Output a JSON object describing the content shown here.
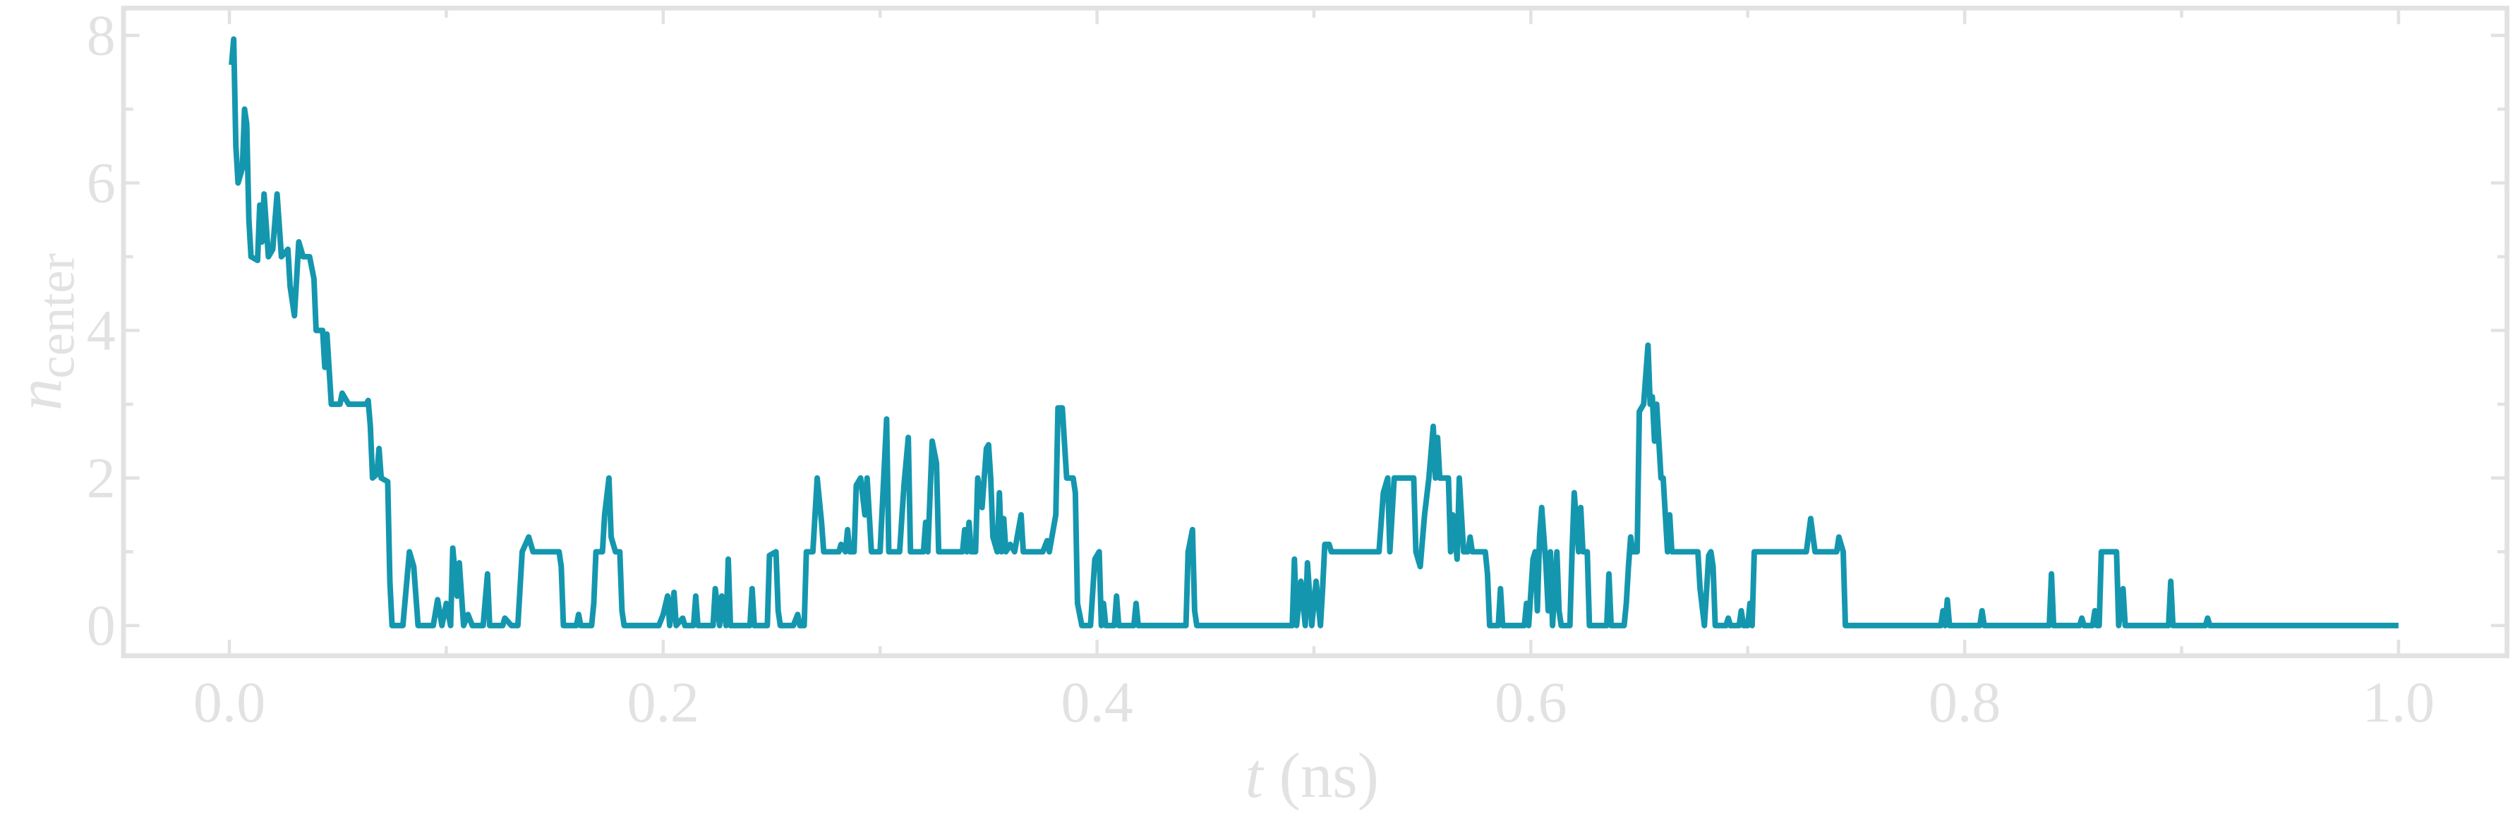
{
  "chart_data": {
    "type": "line",
    "xlabel": {
      "symbol": "t",
      "unit": "(ns)"
    },
    "ylabel": {
      "symbol": "n",
      "subscript": "center"
    },
    "xlim": [
      -0.0488,
      1.05
    ],
    "ylim": [
      -0.41,
      8.37
    ],
    "xticks": [
      {
        "value": 0,
        "label": "0.0"
      },
      {
        "value": 0.2,
        "label": "0.2"
      },
      {
        "value": 0.4,
        "label": "0.4"
      },
      {
        "value": 0.6,
        "label": "0.6"
      },
      {
        "value": 0.8,
        "label": "0.8"
      },
      {
        "value": 1,
        "label": "1.0"
      }
    ],
    "xminorticks": [
      0.1,
      0.3,
      0.5,
      0.7,
      0.9
    ],
    "yticks": [
      0,
      2,
      4,
      6,
      8
    ],
    "yminorticks": [
      1,
      3,
      5,
      7
    ],
    "axis_color": "#e2e2e2",
    "x": [
      0.001,
      0.002,
      0.003,
      0.004,
      0.006,
      0.007,
      0.008,
      0.009,
      0.01,
      0.013,
      0.014,
      0.015,
      0.016,
      0.018,
      0.02,
      0.022,
      0.024,
      0.027,
      0.028,
      0.03,
      0.032,
      0.034,
      0.037,
      0.039,
      0.04,
      0.043,
      0.044,
      0.045,
      0.047,
      0.051,
      0.052,
      0.055,
      0.063,
      0.064,
      0.065,
      0.066,
      0.068,
      0.069,
      0.07,
      0.073,
      0.074,
      0.075,
      0.08,
      0.083,
      0.085,
      0.087,
      0.094,
      0.096,
      0.098,
      0.1,
      0.102,
      0.103,
      0.105,
      0.106,
      0.108,
      0.11,
      0.112,
      0.117,
      0.119,
      0.12,
      0.126,
      0.127,
      0.13,
      0.133,
      0.135,
      0.138,
      0.14,
      0.152,
      0.153,
      0.154,
      0.16,
      0.161,
      0.162,
      0.167,
      0.168,
      0.169,
      0.172,
      0.173,
      0.175,
      0.176,
      0.178,
      0.18,
      0.181,
      0.182,
      0.198,
      0.2,
      0.202,
      0.203,
      0.205,
      0.206,
      0.209,
      0.21,
      0.214,
      0.215,
      0.216,
      0.223,
      0.224,
      0.226,
      0.227,
      0.229,
      0.23,
      0.231,
      0.24,
      0.241,
      0.242,
      0.248,
      0.249,
      0.252,
      0.253,
      0.254,
      0.26,
      0.262,
      0.263,
      0.265,
      0.266,
      0.269,
      0.271,
      0.273,
      0.274,
      0.281,
      0.282,
      0.284,
      0.285,
      0.286,
      0.288,
      0.289,
      0.291,
      0.293,
      0.294,
      0.296,
      0.3,
      0.301,
      0.303,
      0.304,
      0.309,
      0.311,
      0.313,
      0.314,
      0.32,
      0.321,
      0.322,
      0.324,
      0.326,
      0.327,
      0.338,
      0.339,
      0.34,
      0.341,
      0.342,
      0.344,
      0.345,
      0.347,
      0.349,
      0.35,
      0.351,
      0.352,
      0.354,
      0.355,
      0.356,
      0.357,
      0.358,
      0.36,
      0.362,
      0.365,
      0.366,
      0.375,
      0.377,
      0.378,
      0.381,
      0.382,
      0.384,
      0.386,
      0.389,
      0.39,
      0.391,
      0.393,
      0.397,
      0.399,
      0.401,
      0.402,
      0.403,
      0.404,
      0.408,
      0.409,
      0.41,
      0.417,
      0.418,
      0.419,
      0.441,
      0.442,
      0.444,
      0.445,
      0.446,
      0.49,
      0.491,
      0.492,
      0.494,
      0.496,
      0.497,
      0.499,
      0.501,
      0.503,
      0.504,
      0.505,
      0.507,
      0.508,
      0.53,
      0.532,
      0.534,
      0.535,
      0.537,
      0.538,
      0.546,
      0.547,
      0.549,
      0.551,
      0.553,
      0.555,
      0.556,
      0.557,
      0.558,
      0.562,
      0.563,
      0.564,
      0.565,
      0.566,
      0.567,
      0.568,
      0.569,
      0.571,
      0.572,
      0.573,
      0.579,
      0.58,
      0.581,
      0.585,
      0.586,
      0.587,
      0.597,
      0.598,
      0.599,
      0.601,
      0.602,
      0.603,
      0.604,
      0.605,
      0.607,
      0.608,
      0.609,
      0.61,
      0.612,
      0.613,
      0.614,
      0.618,
      0.619,
      0.62,
      0.622,
      0.623,
      0.624,
      0.626,
      0.627,
      0.635,
      0.636,
      0.637,
      0.643,
      0.644,
      0.645,
      0.646,
      0.647,
      0.649,
      0.65,
      0.652,
      0.654,
      0.655,
      0.656,
      0.657,
      0.658,
      0.66,
      0.661,
      0.662,
      0.663,
      0.664,
      0.665,
      0.677,
      0.678,
      0.68,
      0.682,
      0.683,
      0.684,
      0.685,
      0.69,
      0.691,
      0.692,
      0.696,
      0.697,
      0.698,
      0.7,
      0.701,
      0.702,
      0.703,
      0.727,
      0.729,
      0.731,
      0.741,
      0.742,
      0.744,
      0.745,
      0.789,
      0.79,
      0.791,
      0.792,
      0.793,
      0.807,
      0.808,
      0.809,
      0.839,
      0.84,
      0.841,
      0.853,
      0.854,
      0.855,
      0.859,
      0.86,
      0.861,
      0.862,
      0.863,
      0.87,
      0.871,
      0.873,
      0.874,
      0.894,
      0.895,
      0.896,
      0.911,
      0.912,
      0.913,
      1.0
    ],
    "series": [
      {
        "color": "#1497ae",
        "values": [
          7.6,
          7.95,
          6.5,
          6.0,
          6.2,
          7.0,
          6.8,
          5.5,
          5.0,
          4.95,
          5.7,
          5.2,
          5.85,
          5.0,
          5.1,
          5.85,
          5.0,
          5.1,
          4.6,
          4.2,
          5.2,
          5.0,
          5.0,
          4.7,
          4.0,
          4.0,
          3.5,
          3.95,
          3.0,
          3.0,
          3.15,
          3.0,
          3.0,
          3.05,
          2.7,
          2.0,
          2.05,
          2.4,
          2.0,
          1.95,
          0.6,
          0,
          0,
          1.0,
          0.8,
          0,
          0,
          0.35,
          0,
          0.3,
          0,
          1.05,
          0.4,
          0.85,
          0,
          0.15,
          0,
          0,
          0.7,
          0,
          0,
          0.1,
          0,
          0,
          1.0,
          1.2,
          1.0,
          1.0,
          0.8,
          0,
          0,
          0.15,
          0,
          0,
          0.3,
          1.0,
          1.0,
          1.5,
          2.0,
          1.2,
          1.0,
          1.0,
          0.2,
          0,
          0,
          0.15,
          0.4,
          0,
          0.45,
          0,
          0.1,
          0,
          0,
          0.4,
          0,
          0,
          0.5,
          0,
          0.4,
          0,
          0.9,
          0,
          0,
          0.5,
          0,
          0,
          0.95,
          1.0,
          0.2,
          0,
          0,
          0.15,
          0,
          0,
          1.0,
          1.0,
          2.0,
          1.4,
          1.0,
          1.0,
          1.1,
          1.0,
          1.3,
          1.0,
          1.0,
          1.9,
          2.0,
          1.5,
          2.0,
          1.0,
          1.0,
          1.6,
          2.8,
          1.0,
          1.0,
          1.9,
          2.55,
          1.0,
          1.0,
          1.4,
          1.0,
          2.5,
          2.2,
          1.0,
          1.0,
          1.3,
          1.0,
          1.4,
          1.0,
          1.0,
          2.0,
          1.6,
          2.4,
          2.45,
          2.0,
          1.2,
          1.0,
          1.8,
          1.0,
          1.45,
          1.0,
          1.1,
          1.0,
          1.5,
          1.0,
          1.0,
          1.15,
          1.0,
          1.5,
          2.95,
          2.95,
          2.0,
          2.0,
          1.8,
          0.3,
          0,
          0,
          0.9,
          1.0,
          0,
          0.3,
          0,
          0,
          0.4,
          0,
          0,
          0.3,
          0,
          0,
          1.0,
          1.3,
          0.2,
          0,
          0,
          0.9,
          0,
          0.6,
          0,
          0.85,
          0,
          0.6,
          0,
          0.5,
          1.1,
          1.1,
          1.0,
          1.0,
          1.8,
          2.0,
          1.0,
          2.0,
          2.0,
          2.0,
          1.0,
          0.8,
          1.5,
          2.0,
          2.7,
          2.0,
          2.55,
          2.0,
          2.0,
          1.0,
          1.5,
          1.2,
          0.9,
          2.0,
          1.5,
          1.0,
          1.0,
          1.2,
          1.0,
          1.0,
          0.7,
          0,
          0,
          0.5,
          0,
          0,
          0.3,
          0,
          0.9,
          1.0,
          0.2,
          1.2,
          1.6,
          0.8,
          0.2,
          1.0,
          0,
          1.0,
          0.2,
          0,
          0,
          1.0,
          1.8,
          1.0,
          1.6,
          1.0,
          1.0,
          0,
          0,
          0.7,
          0,
          0,
          0.3,
          0.8,
          1.2,
          1.0,
          1.0,
          2.9,
          3.0,
          3.8,
          3.0,
          3.1,
          2.5,
          3.0,
          2.0,
          2.0,
          1.5,
          1.0,
          1.5,
          1.0,
          1.0,
          0.5,
          0,
          0.95,
          1.0,
          0.8,
          0,
          0,
          0.1,
          0,
          0,
          0.2,
          0,
          0,
          0.3,
          0,
          1.0,
          1.0,
          1.45,
          1.0,
          1.0,
          1.2,
          1.0,
          0,
          0,
          0.2,
          0,
          0.35,
          0,
          0,
          0.2,
          0,
          0,
          0.7,
          0,
          0,
          0.1,
          0,
          0,
          0.2,
          0,
          0,
          1.0,
          1.0,
          0,
          0.5,
          0,
          0,
          0.6,
          0,
          0,
          0.1,
          0,
          0
        ]
      }
    ]
  }
}
